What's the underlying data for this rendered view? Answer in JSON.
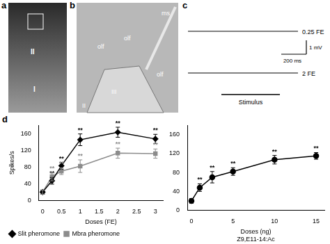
{
  "panels": {
    "a": {
      "label": "a",
      "texts": [
        "I",
        "II"
      ]
    },
    "b": {
      "label": "b",
      "texts": [
        "II",
        "III",
        "olf",
        "olf",
        "olf",
        "ms"
      ]
    },
    "c": {
      "label": "c",
      "traces": [
        "0.25 FE",
        "2 FE"
      ],
      "scale_bar": [
        "1 mV",
        "200 ms"
      ],
      "stimulus": "Stimulus"
    }
  },
  "chart_data": [
    {
      "label": "d",
      "type": "line",
      "xlabel": "Doses (FE)",
      "ylabel": "Spikes/s",
      "xlim": [
        -0.1,
        3.2
      ],
      "xticks": [
        0,
        0.5,
        1,
        1.5,
        2,
        2.5,
        3
      ],
      "ylim": [
        0,
        180
      ],
      "yticks": [
        0,
        40,
        80,
        120,
        160
      ],
      "legend": "bottom",
      "x": [
        0,
        0.25,
        0.5,
        1,
        2,
        3
      ],
      "series": [
        {
          "name": "Slit pheromone",
          "color": "#000000",
          "marker": "diamond",
          "values": [
            20,
            47,
            83,
            145,
            163,
            147
          ],
          "errors": [
            5,
            8,
            8,
            14,
            12,
            11
          ],
          "significance": [
            null,
            "**",
            "**",
            "**",
            "**",
            "**"
          ]
        },
        {
          "name": "Mbra pheromone",
          "color": "#8c8c8c",
          "marker": "square",
          "values": [
            20,
            57,
            70,
            82,
            113,
            112
          ],
          "errors": [
            5,
            10,
            8,
            15,
            12,
            11
          ],
          "significance": [
            null,
            "**",
            "**",
            "**",
            "**",
            "**"
          ]
        }
      ]
    },
    {
      "type": "line",
      "xlabel": "Doses (ng)",
      "subtitle": "Z9,E11-14:Ac",
      "xlim": [
        -0.5,
        16
      ],
      "xticks": [
        0,
        5,
        10,
        15
      ],
      "ylim": [
        0,
        180
      ],
      "yticks": [
        0,
        40,
        80,
        120,
        160
      ],
      "x": [
        0,
        1,
        2.5,
        5,
        10,
        15
      ],
      "series": [
        {
          "color": "#000000",
          "marker": "circle",
          "values": [
            20,
            48,
            70,
            82,
            107,
            115
          ],
          "errors": [
            5,
            8,
            12,
            8,
            9,
            7
          ],
          "significance": [
            null,
            "**",
            "**",
            "**",
            "**",
            "**"
          ]
        }
      ]
    }
  ]
}
